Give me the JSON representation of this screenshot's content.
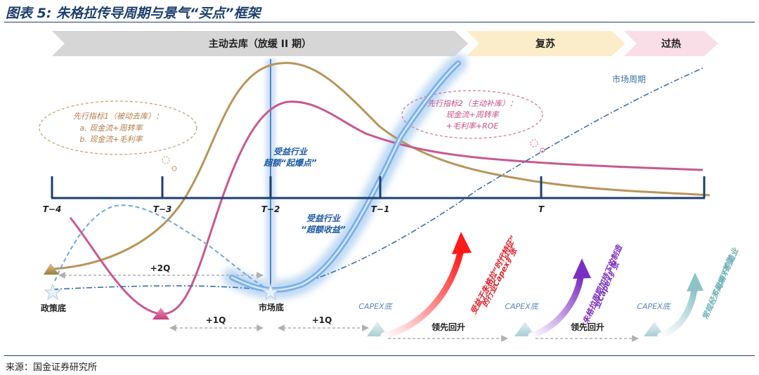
{
  "title": "图表 5: 朱格拉传导周期与景气“买点”框架",
  "source": "来源：国金证券研究所",
  "phases": {
    "active_destock": "主动去库（放缓 II 期）",
    "recovery": "复苏",
    "overheat": "过热"
  },
  "timeline": {
    "ticks": [
      "T−4",
      "T−3",
      "T−2",
      "T−1",
      "T"
    ]
  },
  "labels": {
    "market_cycle": "市场周期",
    "policy_bottom": "政策底",
    "market_bottom": "市场底",
    "capex_bottom_1": "CAPEX底",
    "capex_bottom_2": "CAPEX底",
    "capex_bottom_3": "CAPEX底",
    "lead_rise_1": "领先回升",
    "lead_rise_2": "领先回升",
    "gap_2q": "+2Q",
    "gap_1q_a": "+1Q",
    "gap_1q_b": "+1Q",
    "benefit_explosion_1": "受益行业",
    "benefit_explosion_2": "超额“起爆点”",
    "benefit_excess_1": "受益行业",
    "benefit_excess_2": "“超额收益”"
  },
  "bubbles": {
    "indicator1_title": "先行指标1（被动去库）：",
    "indicator1_a": "a. 现金流+周转率",
    "indicator1_b": "b. 现金流+毛利率",
    "indicator2_title": "先行指标2（主动补库）：",
    "indicator2_a": "现金流+周转率",
    "indicator2_b": "+毛利率+ROE"
  },
  "arrows": {
    "red_1": "受益于朱格拉“时代特征”",
    "red_2": "的行业Capex扩张",
    "purple_1": "朱格拉周期加持下的制造",
    "purple_2": "业Capex扩张",
    "teal_1": "常规经济周期下制造业",
    "teal_2": "Capex扩张"
  },
  "colors": {
    "gold": "#b8955a",
    "pink": "#c8588f",
    "blue": "#6fa8dc",
    "navy": "#1c3f6e",
    "red": "#ff2020",
    "purple": "#8a40c8",
    "teal": "#86bfc4"
  }
}
